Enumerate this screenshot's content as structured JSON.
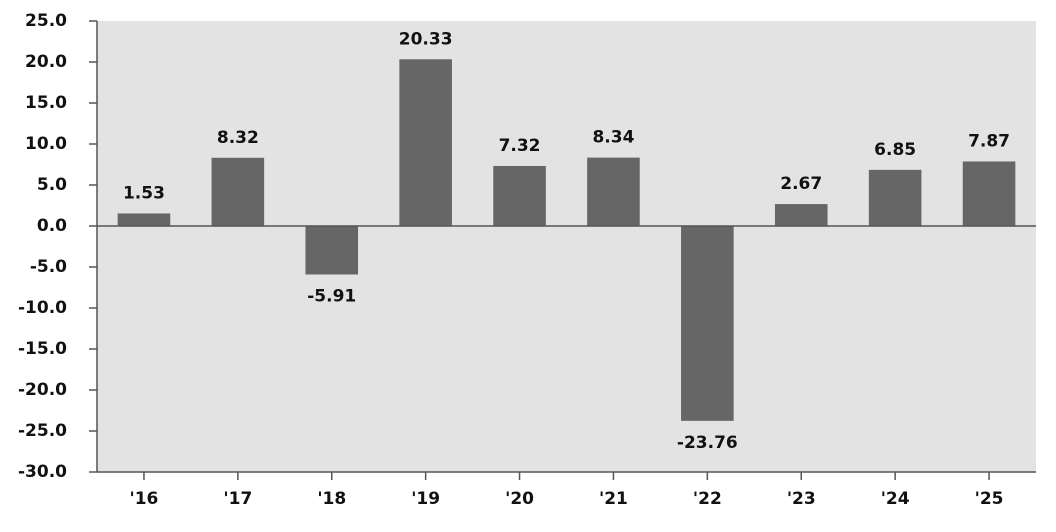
{
  "chart_data": {
    "type": "bar",
    "categories": [
      "'16",
      "'17",
      "'18",
      "'19",
      "'20",
      "'21",
      "'22",
      "'23",
      "'24",
      "'25"
    ],
    "values": [
      1.53,
      8.32,
      -5.91,
      20.33,
      7.32,
      8.34,
      -23.76,
      2.67,
      6.85,
      7.87
    ],
    "color": "#666666",
    "ylim": [
      -30,
      25
    ],
    "yticks": [
      {
        "value": -30,
        "label": "-30.0"
      },
      {
        "value": -25,
        "label": "-25.0"
      },
      {
        "value": -20,
        "label": "-20.0"
      },
      {
        "value": -15,
        "label": "-15.0"
      },
      {
        "value": -10,
        "label": "-10.0"
      },
      {
        "value": -5,
        "label": "-5.0"
      },
      {
        "value": 0,
        "label": "0.0"
      },
      {
        "value": 5,
        "label": "5.0"
      },
      {
        "value": 10,
        "label": "10.0"
      },
      {
        "value": 15,
        "label": "15.0"
      },
      {
        "value": 20,
        "label": "20.0"
      },
      {
        "value": 25,
        "label": "25.0"
      }
    ],
    "grid": false
  }
}
